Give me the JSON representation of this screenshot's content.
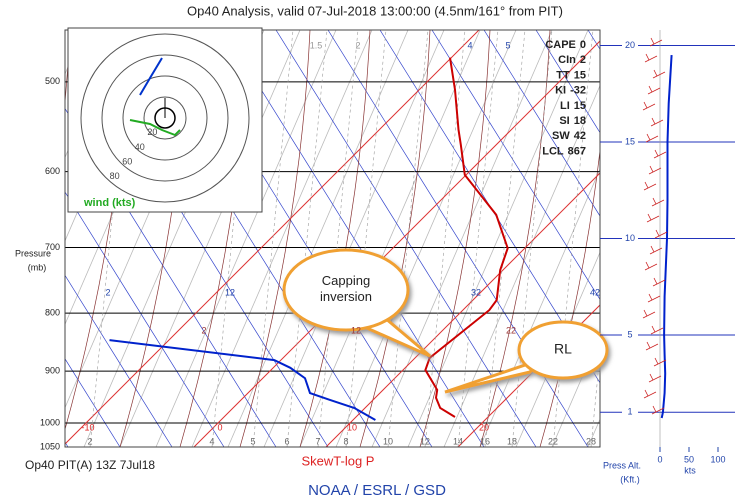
{
  "chart_data": {
    "type": "skewt",
    "title": "Op40 Analysis, valid 07-Jul-2018 13:00:00 (4.5nm/161° from PIT)",
    "ylabel": "Pressure",
    "ylabel_units": "(mb)",
    "xlabel": "SkewT-log P",
    "log_y": true,
    "ylim": [
      450,
      1050
    ],
    "yticks": [
      500,
      600,
      700,
      800,
      900,
      1000,
      1050
    ],
    "xticks": [
      -10,
      0,
      10,
      20
    ],
    "mixing_ratio_labels": [
      2,
      4,
      5,
      6,
      7,
      8,
      10,
      12,
      14,
      16,
      18,
      22,
      28
    ],
    "adiabat_labels": [
      1.5,
      2,
      4,
      5,
      2,
      12,
      32,
      42,
      2,
      12,
      22
    ],
    "series": [
      {
        "color": "#cc0000",
        "pressure": [
          988,
          970,
          950,
          935,
          898,
          876,
          795,
          779,
          733,
          701,
          655,
          604,
          568,
          551,
          508,
          476
        ],
        "values": [
          17.5,
          15.7,
          14.6,
          14.1,
          11.7,
          11.1,
          12.0,
          11.8,
          9.8,
          8.7,
          5.3,
          -0.1,
          -2.7,
          -4.0,
          -7.3,
          -10.1
        ]
      },
      {
        "color": "#0022cc",
        "pressure": [
          994,
          970,
          954,
          941,
          913,
          894,
          880,
          845
        ],
        "values": [
          11.7,
          9.2,
          6.7,
          4.7,
          3.2,
          1.3,
          -0.5,
          -14.5
        ]
      }
    ],
    "indices": [
      {
        "name": "CAPE",
        "value": 0
      },
      {
        "name": "CIn",
        "value": 2
      },
      {
        "name": "TT",
        "value": 15
      },
      {
        "name": "KI",
        "value": -32
      },
      {
        "name": "LI",
        "value": 15
      },
      {
        "name": "SI",
        "value": 18
      },
      {
        "name": "SW",
        "value": 42
      },
      {
        "name": "LCL",
        "value": 867
      }
    ],
    "hodograph": {
      "rings": [
        20,
        40,
        60,
        80
      ],
      "label": "wind (kts)"
    },
    "wind_profile": {
      "ylabel": [
        "Press Alt.",
        "(Kft.)"
      ],
      "xlabel": "kts",
      "ylim": [
        -0.8,
        20.8
      ],
      "yticks": [
        1,
        5,
        10,
        15,
        20
      ],
      "xlim": [
        0,
        100
      ],
      "xticks": [
        0,
        50,
        100
      ],
      "color": "#0022cc",
      "heights": [
        0.7,
        1,
        2,
        3,
        4,
        5,
        7,
        10,
        12,
        15,
        17,
        19.5
      ],
      "values": [
        3,
        5,
        8,
        9,
        8,
        7,
        8,
        12,
        13,
        13,
        15,
        20
      ]
    },
    "annotations": [
      "Capping inversion",
      "RL"
    ],
    "footer_left": "Op40 PIT(A) 13Z 7Jul18",
    "footer": "NOAA / ESRL / GSD"
  }
}
